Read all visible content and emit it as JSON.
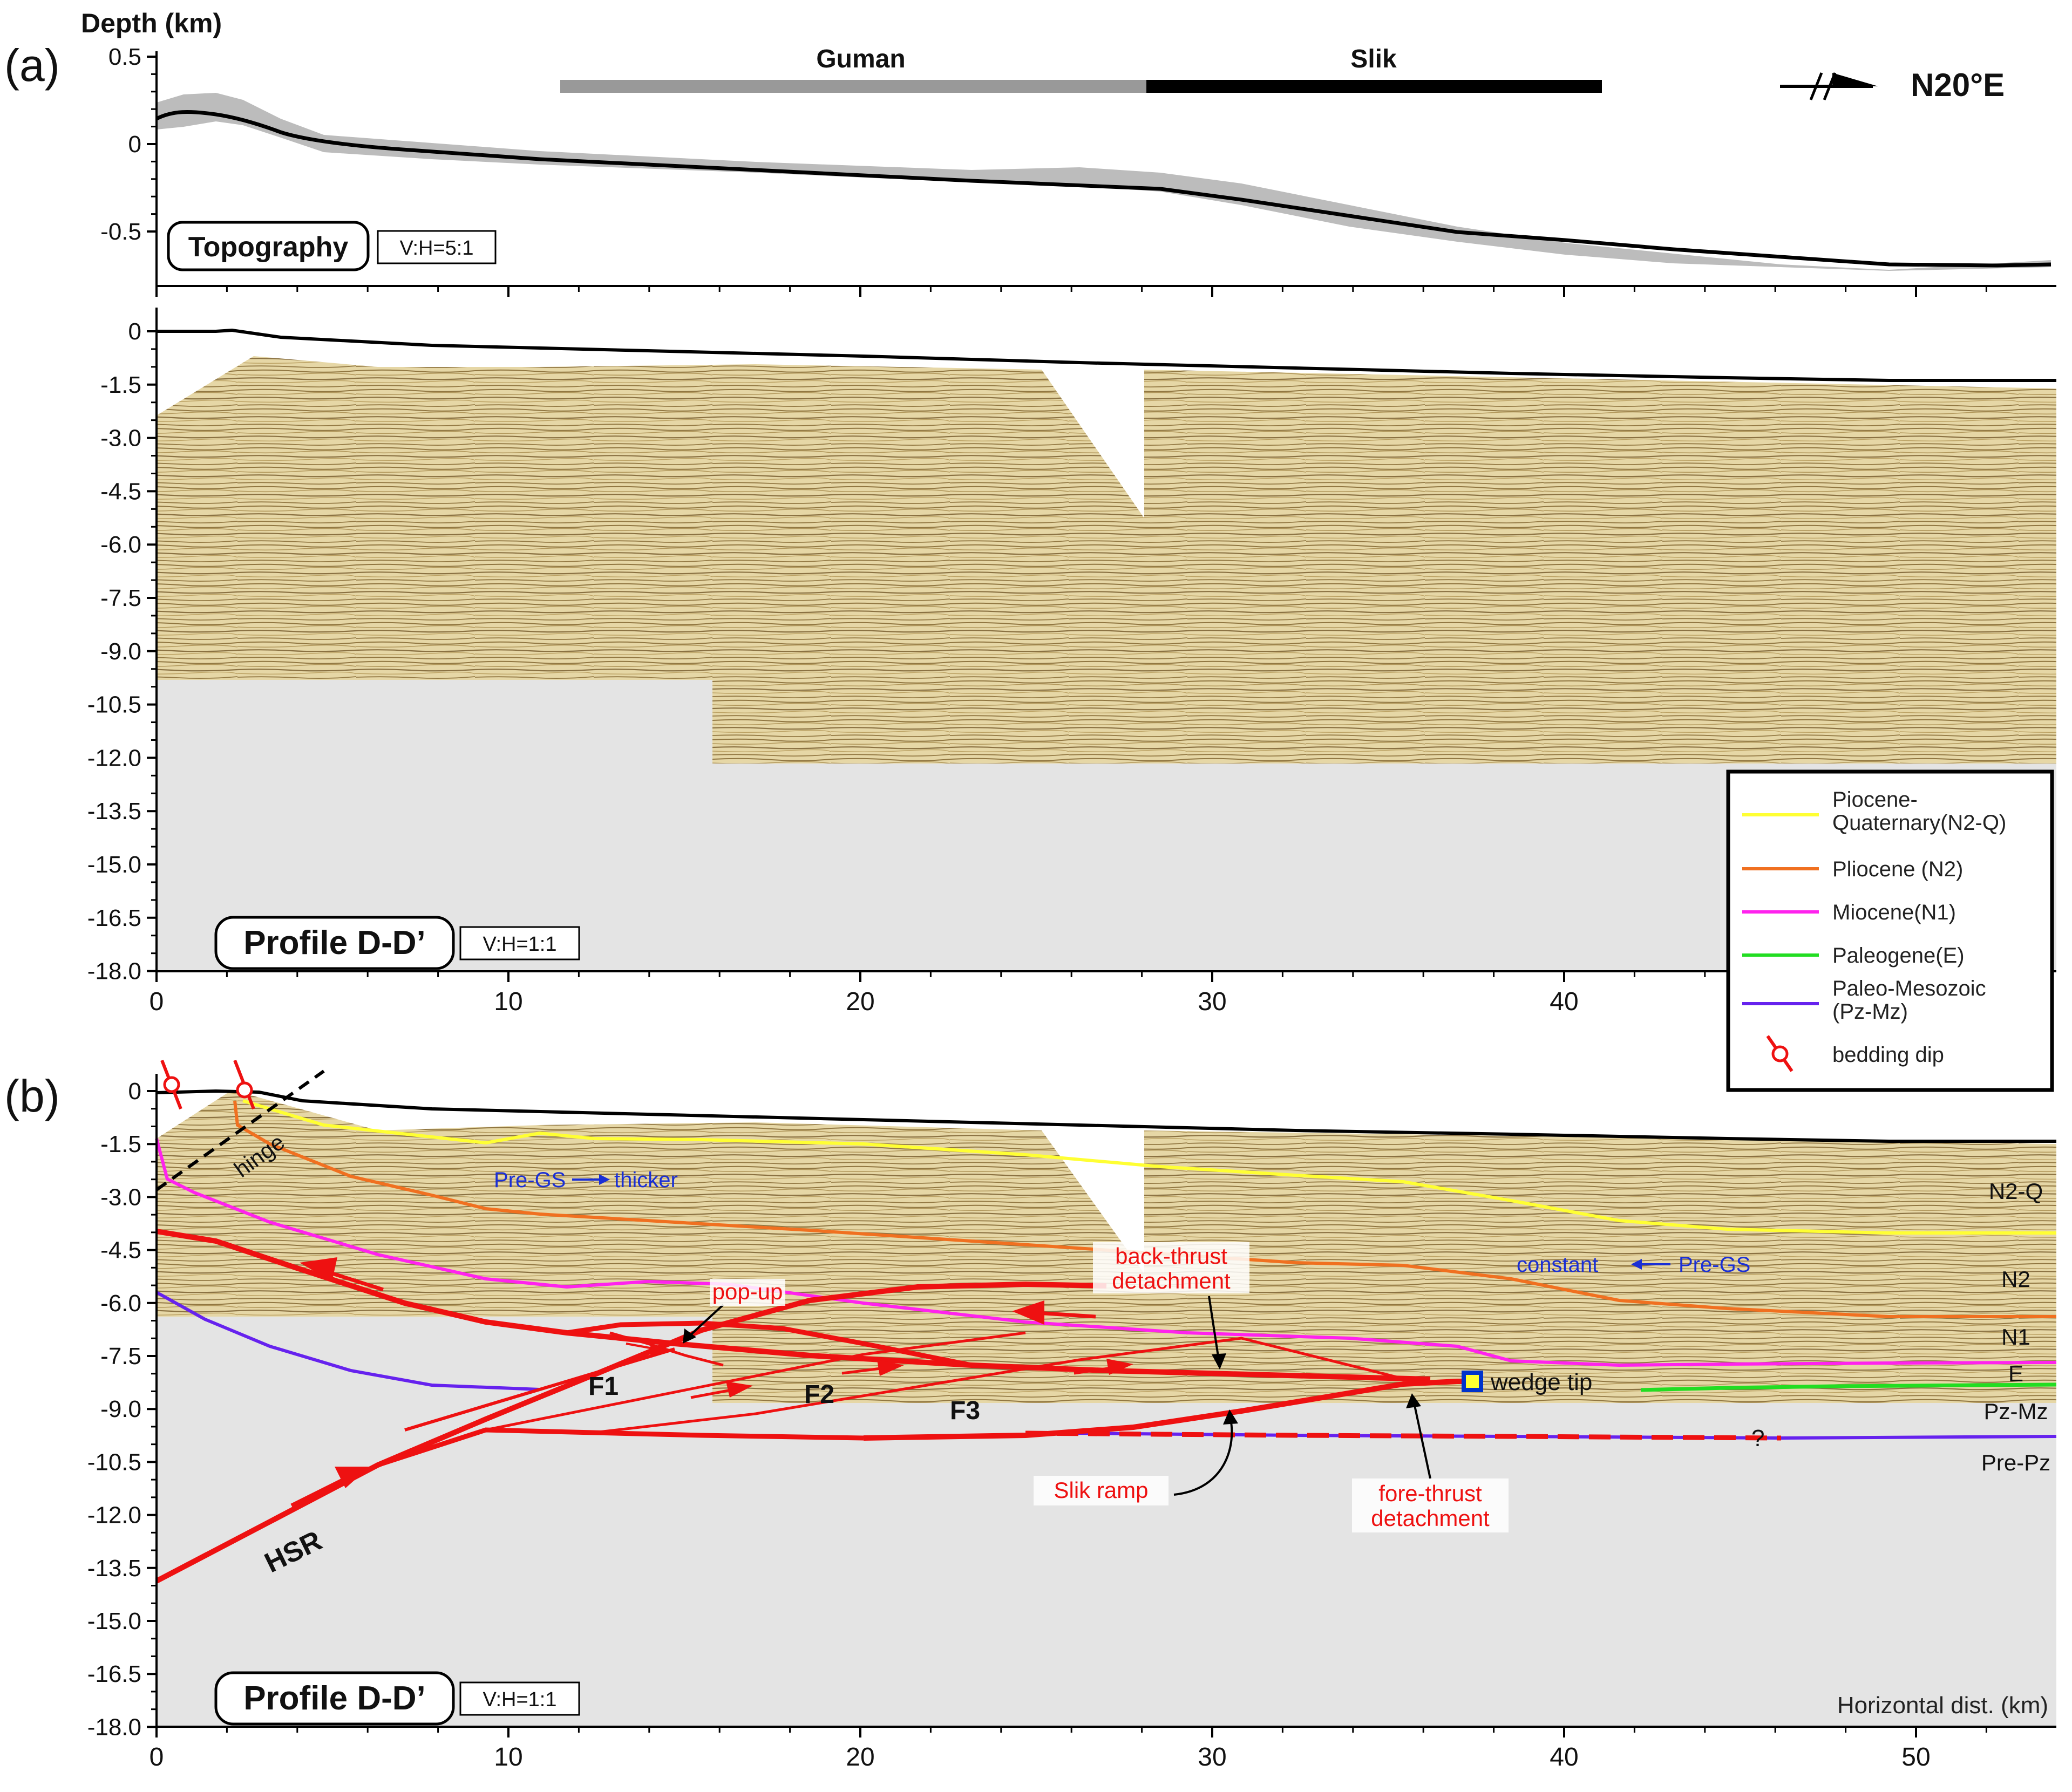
{
  "panel_a": {
    "label": "(a)",
    "y_title": "Depth (km)",
    "topo_yticks": [
      "0.5",
      "0",
      "-0.5"
    ],
    "topo_badge": "Topography",
    "topo_ratio": "V:H=5:1",
    "segment_guman": "Guman",
    "segment_slik": "Slik",
    "orientation": "N20°E",
    "seis_yticks": [
      "0",
      "-1.5",
      "-3.0",
      "-4.5",
      "-6.0",
      "-7.5",
      "-9.0",
      "-10.5",
      "-12.0",
      "-13.5",
      "-15.0",
      "-16.5",
      "-18.0"
    ],
    "profile_badge": "Profile D-D’",
    "profile_ratio": "V:H=1:1",
    "xticks": [
      "0",
      "10",
      "20",
      "30",
      "40"
    ]
  },
  "panel_b": {
    "label": "(b)",
    "yticks": [
      "0",
      "-1.5",
      "-3.0",
      "-4.5",
      "-6.0",
      "-7.5",
      "-9.0",
      "-10.5",
      "-12.0",
      "-13.5",
      "-15.0",
      "-16.5",
      "-18.0"
    ],
    "xticks": [
      "0",
      "10",
      "20",
      "30",
      "40",
      "50"
    ],
    "x_title": "Horizontal dist. (km)",
    "profile_badge": "Profile D-D’",
    "profile_ratio": "V:H=1:1",
    "labels": {
      "hinge": "hinge",
      "pre_gs_left": "Pre-GS",
      "thicker": "thicker",
      "pop_up": "pop-up",
      "back_thrust_1": "back-thrust",
      "back_thrust_2": "detachment",
      "constant": "constant",
      "pre_gs_right": "Pre-GS",
      "f1": "F1",
      "f2": "F2",
      "f3": "F3",
      "wedge_tip": "wedge tip",
      "slik_ramp": "Slik ramp",
      "fore_thrust_1": "fore-thrust",
      "fore_thrust_2": "detachment",
      "hsr": "HSR",
      "question": "?"
    },
    "units": [
      "N2-Q",
      "N2",
      "N1",
      "E",
      "Pz-Mz",
      "Pre-Pz"
    ]
  },
  "legend": [
    {
      "label": "Piocene-",
      "label2": "Quaternary(N2-Q)",
      "color": "#ffff33"
    },
    {
      "label": "Pliocene (N2)",
      "color": "#f07020"
    },
    {
      "label": "Miocene(N1)",
      "color": "#ff22ee"
    },
    {
      "label": "Paleogene(E)",
      "color": "#22dd22"
    },
    {
      "label": "Paleo-Mesozoic",
      "label2": "(Pz-Mz)",
      "color": "#6622ee"
    },
    {
      "label": "bedding dip",
      "color": "#ee1111"
    }
  ]
}
